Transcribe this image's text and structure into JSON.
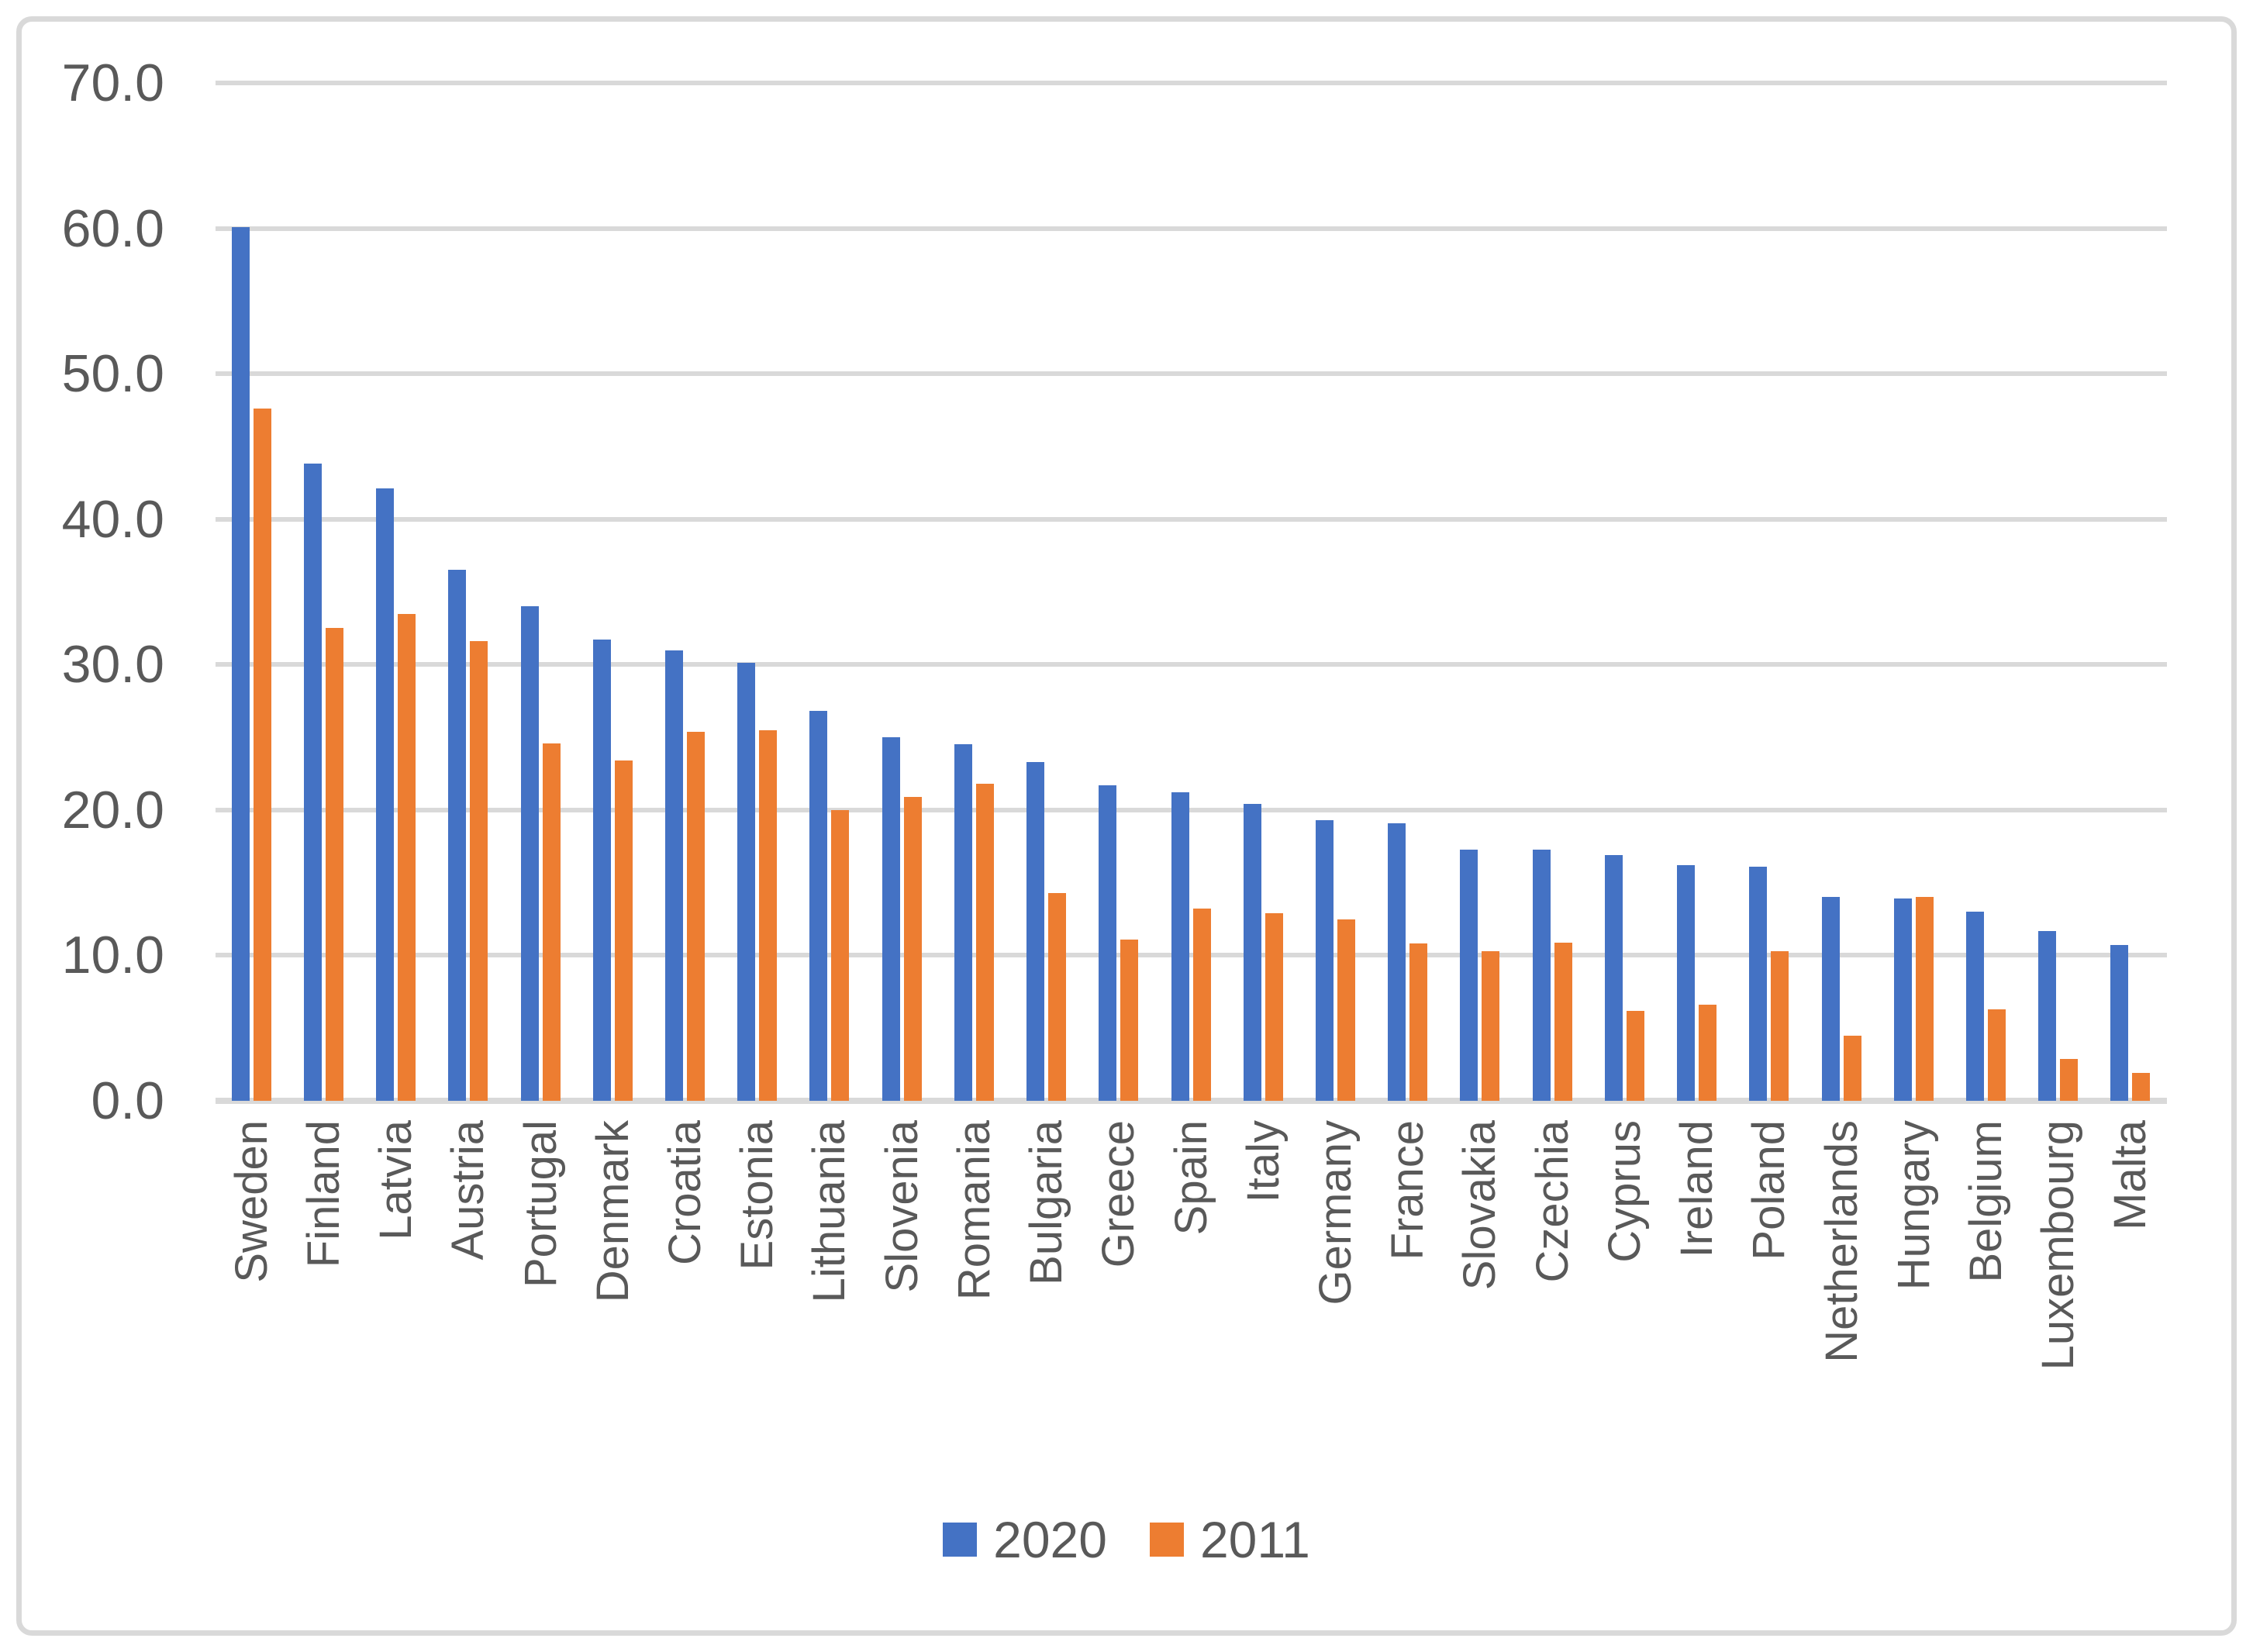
{
  "chart_data": {
    "type": "bar",
    "title": "",
    "categories": [
      "Sweden",
      "Finland",
      "Latvia",
      "Austria",
      "Portugal",
      "Denmark",
      "Croatia",
      "Estonia",
      "Lithuania",
      "Slovenia",
      "Romania",
      "Bulgaria",
      "Greece",
      "Spain",
      "Italy",
      "Germany",
      "France",
      "Slovakia",
      "Czechia",
      "Cyprus",
      "Ireland",
      "Poland",
      "Netherlands",
      "Hungary",
      "Belgium",
      "Luxembourg",
      "Malta"
    ],
    "series": [
      {
        "name": "2020",
        "color": "#4472C4",
        "values": [
          60.1,
          43.8,
          42.1,
          36.5,
          34.0,
          31.7,
          31.0,
          30.1,
          26.8,
          25.0,
          24.5,
          23.3,
          21.7,
          21.2,
          20.4,
          19.3,
          19.1,
          17.3,
          17.3,
          16.9,
          16.2,
          16.1,
          14.0,
          13.9,
          13.0,
          11.7,
          10.7
        ]
      },
      {
        "name": "2011",
        "color": "#ED7D31",
        "values": [
          47.6,
          32.5,
          33.5,
          31.6,
          24.6,
          23.4,
          25.4,
          25.5,
          20.0,
          20.9,
          21.8,
          14.3,
          11.1,
          13.2,
          12.9,
          12.5,
          10.8,
          10.3,
          10.9,
          6.2,
          6.6,
          10.3,
          4.5,
          14.0,
          6.3,
          2.9,
          1.9
        ]
      }
    ],
    "xlabel": "",
    "ylabel": "",
    "ylim": [
      0,
      70
    ],
    "ytick_step": 10,
    "ytick_labels": [
      "0.0",
      "10.0",
      "20.0",
      "30.0",
      "40.0",
      "50.0",
      "60.0",
      "70.0"
    ],
    "grid": true,
    "legend_position": "bottom-center"
  },
  "colors": {
    "series_2020": "#4472C4",
    "series_2011": "#ED7D31",
    "gridline": "#D9D9D9",
    "frame_border": "#D9D9D9",
    "text": "#595959",
    "background": "#FFFFFF"
  }
}
